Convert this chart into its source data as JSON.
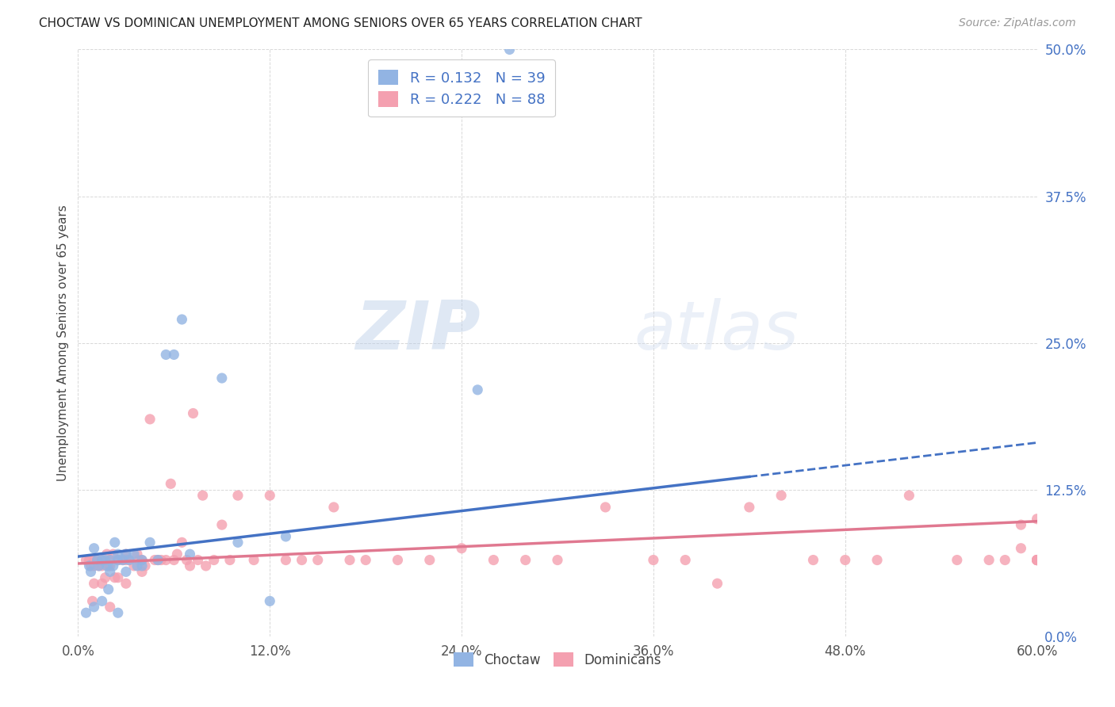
{
  "title": "CHOCTAW VS DOMINICAN UNEMPLOYMENT AMONG SENIORS OVER 65 YEARS CORRELATION CHART",
  "source": "Source: ZipAtlas.com",
  "ylabel": "Unemployment Among Seniors over 65 years",
  "xlim": [
    0.0,
    0.6
  ],
  "ylim": [
    0.0,
    0.5
  ],
  "choctaw_color": "#92b4e3",
  "dominican_color": "#f4a0b0",
  "choctaw_line_color": "#4472c4",
  "dominican_line_color": "#e07890",
  "choctaw_R": 0.132,
  "choctaw_N": 39,
  "dominican_R": 0.222,
  "dominican_N": 88,
  "legend_text_color": "#4472c4",
  "background_color": "#ffffff",
  "grid_color": "#d8d8d8",
  "watermark": "ZIPatlas",
  "choctaw_line": [
    0.0,
    0.068,
    0.42,
    0.136
  ],
  "choctaw_line_ext": [
    0.42,
    0.136,
    0.6,
    0.165
  ],
  "dominican_line": [
    0.0,
    0.062,
    0.6,
    0.098
  ],
  "choctaw_x": [
    0.005,
    0.007,
    0.008,
    0.01,
    0.01,
    0.012,
    0.013,
    0.015,
    0.015,
    0.017,
    0.018,
    0.019,
    0.02,
    0.02,
    0.022,
    0.023,
    0.025,
    0.025,
    0.025,
    0.028,
    0.03,
    0.03,
    0.032,
    0.035,
    0.037,
    0.04,
    0.04,
    0.045,
    0.05,
    0.055,
    0.06,
    0.065,
    0.07,
    0.09,
    0.1,
    0.12,
    0.13,
    0.25,
    0.27
  ],
  "choctaw_y": [
    0.02,
    0.06,
    0.055,
    0.075,
    0.025,
    0.065,
    0.06,
    0.065,
    0.03,
    0.065,
    0.06,
    0.04,
    0.055,
    0.065,
    0.06,
    0.08,
    0.065,
    0.07,
    0.02,
    0.065,
    0.055,
    0.07,
    0.065,
    0.07,
    0.06,
    0.065,
    0.06,
    0.08,
    0.065,
    0.24,
    0.24,
    0.27,
    0.07,
    0.22,
    0.08,
    0.03,
    0.085,
    0.21,
    0.5
  ],
  "dominican_x": [
    0.005,
    0.007,
    0.008,
    0.009,
    0.01,
    0.01,
    0.01,
    0.012,
    0.013,
    0.015,
    0.015,
    0.015,
    0.017,
    0.018,
    0.019,
    0.02,
    0.02,
    0.02,
    0.022,
    0.023,
    0.025,
    0.025,
    0.025,
    0.028,
    0.03,
    0.03,
    0.03,
    0.032,
    0.035,
    0.037,
    0.038,
    0.04,
    0.04,
    0.042,
    0.045,
    0.048,
    0.05,
    0.052,
    0.055,
    0.058,
    0.06,
    0.062,
    0.065,
    0.068,
    0.07,
    0.072,
    0.075,
    0.078,
    0.08,
    0.085,
    0.09,
    0.095,
    0.1,
    0.11,
    0.12,
    0.13,
    0.14,
    0.15,
    0.16,
    0.17,
    0.18,
    0.2,
    0.22,
    0.24,
    0.26,
    0.28,
    0.3,
    0.33,
    0.36,
    0.38,
    0.4,
    0.42,
    0.44,
    0.46,
    0.48,
    0.5,
    0.52,
    0.55,
    0.57,
    0.58,
    0.59,
    0.59,
    0.6,
    0.6,
    0.6,
    0.6,
    0.6,
    0.6
  ],
  "dominican_y": [
    0.065,
    0.065,
    0.06,
    0.03,
    0.065,
    0.06,
    0.045,
    0.065,
    0.06,
    0.065,
    0.06,
    0.045,
    0.05,
    0.07,
    0.06,
    0.025,
    0.065,
    0.06,
    0.07,
    0.05,
    0.065,
    0.065,
    0.05,
    0.065,
    0.045,
    0.065,
    0.07,
    0.065,
    0.06,
    0.07,
    0.065,
    0.055,
    0.065,
    0.06,
    0.185,
    0.065,
    0.065,
    0.065,
    0.065,
    0.13,
    0.065,
    0.07,
    0.08,
    0.065,
    0.06,
    0.19,
    0.065,
    0.12,
    0.06,
    0.065,
    0.095,
    0.065,
    0.12,
    0.065,
    0.12,
    0.065,
    0.065,
    0.065,
    0.11,
    0.065,
    0.065,
    0.065,
    0.065,
    0.075,
    0.065,
    0.065,
    0.065,
    0.11,
    0.065,
    0.065,
    0.045,
    0.11,
    0.12,
    0.065,
    0.065,
    0.065,
    0.12,
    0.065,
    0.065,
    0.065,
    0.095,
    0.075,
    0.065,
    0.065,
    0.065,
    0.065,
    0.1,
    0.065
  ]
}
